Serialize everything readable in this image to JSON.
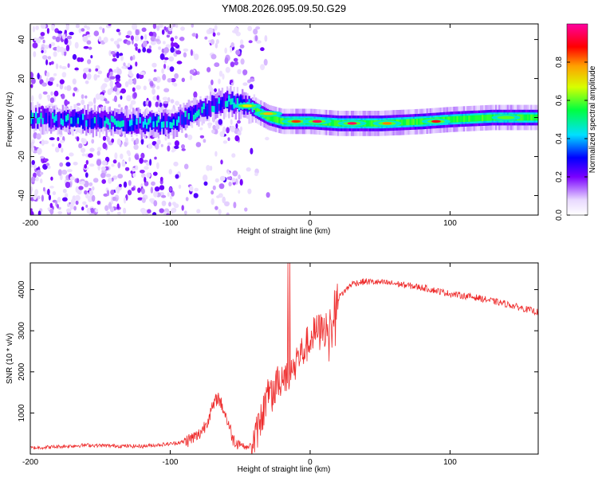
{
  "chart_data": [
    {
      "type": "heatmap",
      "title": "YM08.2026.095.09.50.G29",
      "xlabel": "Height of straight line (km)",
      "ylabel": "Frequency (Hz)",
      "xlim": [
        -200,
        163
      ],
      "ylim": [
        -50,
        48
      ],
      "xticks": [
        "-200",
        "-100",
        "0",
        "100"
      ],
      "yticks": [
        "40",
        "20",
        "0",
        "-20",
        "-40"
      ],
      "colorbar": {
        "label": "Normalized spectral amplitude",
        "range": [
          0.0,
          1.0
        ],
        "ticks": [
          "0.0",
          "0.2",
          "0.4",
          "0.6",
          "0.8"
        ]
      },
      "ridge": [
        {
          "x": -200,
          "y": 0
        },
        {
          "x": -175,
          "y": -1
        },
        {
          "x": -150,
          "y": -2
        },
        {
          "x": -125,
          "y": -3
        },
        {
          "x": -100,
          "y": -3
        },
        {
          "x": -90,
          "y": 0
        },
        {
          "x": -80,
          "y": 3
        },
        {
          "x": -70,
          "y": 6
        },
        {
          "x": -60,
          "y": 8
        },
        {
          "x": -50,
          "y": 7
        },
        {
          "x": -40,
          "y": 4
        },
        {
          "x": -30,
          "y": 0
        },
        {
          "x": -20,
          "y": -2
        },
        {
          "x": 0,
          "y": -2
        },
        {
          "x": 20,
          "y": -3
        },
        {
          "x": 50,
          "y": -3
        },
        {
          "x": 80,
          "y": -2
        },
        {
          "x": 100,
          "y": -1
        },
        {
          "x": 130,
          "y": 0
        },
        {
          "x": 163,
          "y": 0
        }
      ],
      "strong_peaks": [
        {
          "x": -45,
          "y": 6,
          "amp": 0.7
        },
        {
          "x": -30,
          "y": 2,
          "amp": 0.75
        },
        {
          "x": -10,
          "y": -2,
          "amp": 0.85
        },
        {
          "x": 5,
          "y": -2,
          "amp": 0.95
        },
        {
          "x": 30,
          "y": -3,
          "amp": 0.95
        },
        {
          "x": 55,
          "y": -3,
          "amp": 0.8
        },
        {
          "x": 90,
          "y": -2,
          "amp": 0.9
        },
        {
          "x": 140,
          "y": 0,
          "amp": 0.6
        }
      ]
    },
    {
      "type": "line",
      "xlabel": "Height of straight line (km)",
      "ylabel": "SNR (10 * v/v)",
      "xlim": [
        -200,
        163
      ],
      "ylim": [
        0,
        4650
      ],
      "xticks": [
        "-200",
        "-100",
        "0",
        "100"
      ],
      "yticks": [
        "1000",
        "2000",
        "3000",
        "4000"
      ],
      "color": "#ee2a2a",
      "series": [
        {
          "name": "SNR",
          "x": [
            -200,
            -180,
            -160,
            -140,
            -120,
            -100,
            -90,
            -80,
            -75,
            -70,
            -66,
            -62,
            -58,
            -55,
            -50,
            -45,
            -40,
            -35,
            -30,
            -25,
            -20,
            -15,
            -10,
            -5,
            0,
            5,
            10,
            15,
            20,
            30,
            40,
            60,
            80,
            100,
            120,
            140,
            163
          ],
          "values": [
            150,
            180,
            220,
            200,
            190,
            250,
            300,
            450,
            700,
            1100,
            1400,
            1100,
            700,
            350,
            250,
            150,
            300,
            900,
            1400,
            1600,
            1900,
            2000,
            2300,
            2500,
            2800,
            3000,
            3000,
            3300,
            3800,
            4150,
            4200,
            4150,
            4050,
            3900,
            3800,
            3650,
            3450
          ]
        }
      ]
    }
  ]
}
